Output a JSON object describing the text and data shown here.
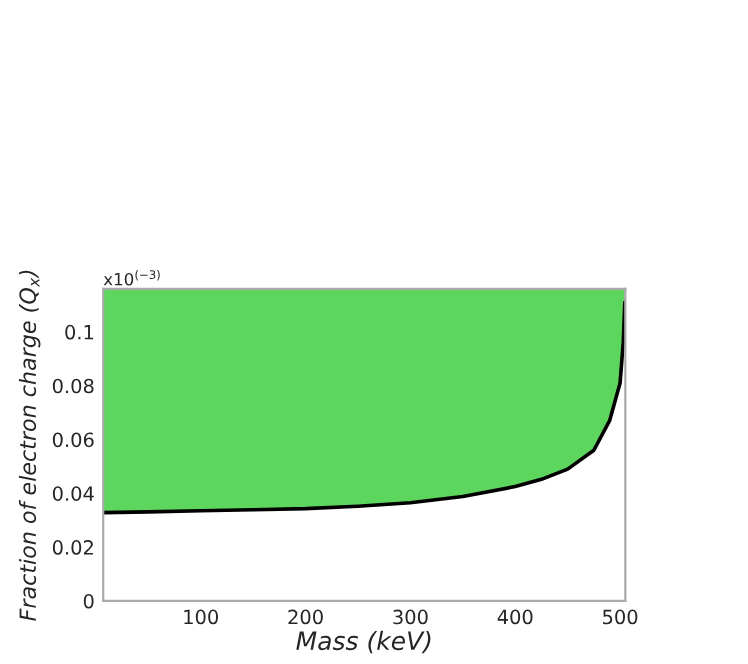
{
  "chart_data": {
    "type": "line",
    "xlabel": "Mass (keV)",
    "ylabel": "Fraction of electron charge (Q$_{x}$)",
    "annotations": [
      "x10$^{(−3)}$"
    ],
    "x": [
      7,
      50,
      100,
      150,
      200,
      250,
      300,
      350,
      400,
      425,
      450,
      475,
      490,
      500,
      503,
      504.5
    ],
    "series": [
      {
        "color": "#000000",
        "values": [
          0.0328,
          0.0331,
          0.0335,
          0.0339,
          0.0343,
          0.0352,
          0.0365,
          0.0388,
          0.0425,
          0.0452,
          0.049,
          0.056,
          0.067,
          0.081,
          0.096,
          0.111
        ],
        "lower": [
          0.0328,
          0.0331,
          0.0335,
          0.0339,
          0.0343,
          0.0352,
          0.0365,
          0.0388,
          0.0425,
          0.0452,
          0.049,
          0.056,
          0.067,
          0.081,
          0.096,
          0.111
        ],
        "upper": [
          0.116,
          0.116,
          0.116,
          0.116,
          0.116,
          0.116,
          0.116,
          0.116,
          0.116,
          0.116,
          0.116,
          0.116,
          0.116,
          0.116,
          0.116,
          0.116
        ]
      }
    ],
    "colors": [
      "#5cd65c"
    ],
    "xlim": [
      7,
      505
    ],
    "ylim": [
      0,
      0.116
    ],
    "xticks": [
      100,
      200,
      300,
      400,
      500
    ],
    "yticks": [
      0,
      0.02,
      0.04,
      0.06,
      0.08,
      0.1
    ],
    "grid": false
  }
}
